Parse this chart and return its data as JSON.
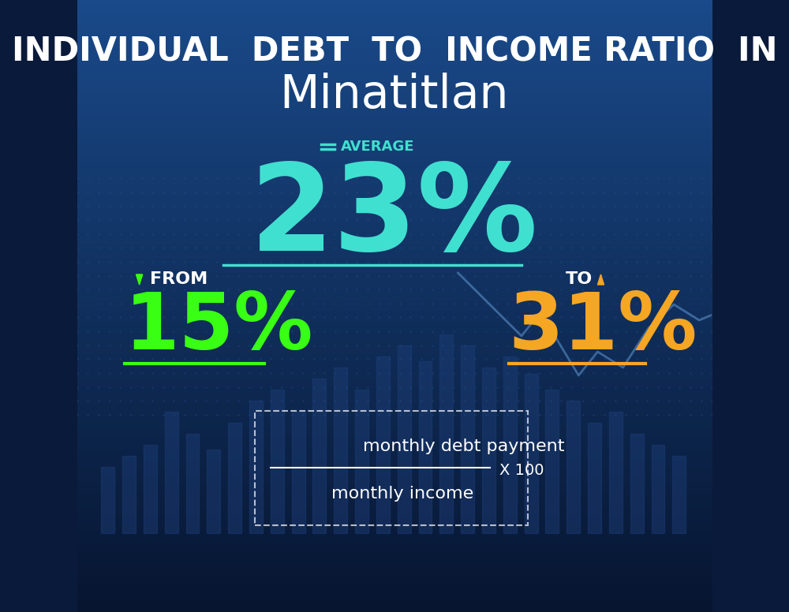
{
  "title_line1": "INDIVIDUAL  DEBT  TO  INCOME RATIO  IN",
  "title_line2": "Minatitlan",
  "avg_label": "AVERAGE",
  "avg_value": "23%",
  "from_label": "FROM",
  "from_value": "15%",
  "to_label": "TO",
  "to_value": "31%",
  "formula_numerator": "monthly debt payment",
  "formula_denominator": "monthly income",
  "formula_multiplier": "X 100",
  "bg_color_top": "#0a1a3a",
  "bg_color_bottom": "#0d2a5e",
  "cyan_color": "#40e0d0",
  "green_color": "#39ff14",
  "yellow_color": "#f5a623",
  "white_color": "#ffffff",
  "avg_underline_color": "#40e0d0",
  "from_underline_color": "#39ff14",
  "to_underline_color": "#f5a623",
  "bar_color": "#1a3a6e",
  "line_color": "#5a8fc8"
}
